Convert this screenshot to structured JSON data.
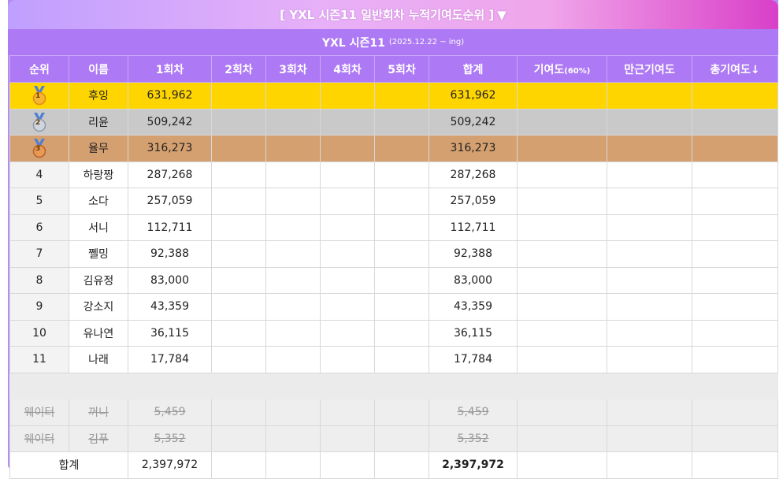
{
  "banner": {
    "title": "[ YXL 시즌11 일반회차 누적기여도순위 ]",
    "toggle_icon": "▼"
  },
  "subheader": {
    "title": "YXL 시즌11",
    "date_range": "(2025.12.22 ~ ing)"
  },
  "columns": {
    "rank": "순위",
    "name": "이름",
    "round1": "1회차",
    "round2": "2회차",
    "round3": "3회차",
    "round4": "4회차",
    "round5": "5회차",
    "total": "합계",
    "contrib": "기여도",
    "contrib_pct": "(60%)",
    "attendance": "만근기여도",
    "total_contrib": "총기여도↓"
  },
  "rows": [
    {
      "rank": "1",
      "name": "후잉",
      "r1": "631,962",
      "total": "631,962",
      "medal": "gold"
    },
    {
      "rank": "2",
      "name": "리윤",
      "r1": "509,242",
      "total": "509,242",
      "medal": "silver"
    },
    {
      "rank": "3",
      "name": "율무",
      "r1": "316,273",
      "total": "316,273",
      "medal": "bronze"
    },
    {
      "rank": "4",
      "name": "하랑짱",
      "r1": "287,268",
      "total": "287,268"
    },
    {
      "rank": "5",
      "name": "소다",
      "r1": "257,059",
      "total": "257,059"
    },
    {
      "rank": "6",
      "name": "서니",
      "r1": "112,711",
      "total": "112,711"
    },
    {
      "rank": "7",
      "name": "쪨밍",
      "r1": "92,388",
      "total": "92,388"
    },
    {
      "rank": "8",
      "name": "김유정",
      "r1": "83,000",
      "total": "83,000"
    },
    {
      "rank": "9",
      "name": "강소지",
      "r1": "43,359",
      "total": "43,359"
    },
    {
      "rank": "10",
      "name": "유나연",
      "r1": "36,115",
      "total": "36,115"
    },
    {
      "rank": "11",
      "name": "나래",
      "r1": "17,784",
      "total": "17,784"
    }
  ],
  "waiters": [
    {
      "rank": "웨이터",
      "name": "꺼니",
      "r1": "5,459",
      "total": "5,459"
    },
    {
      "rank": "웨이터",
      "name": "김푸",
      "r1": "5,352",
      "total": "5,352"
    }
  ],
  "summary": {
    "label": "합계",
    "r1": "2,397,972",
    "total": "2,397,972"
  },
  "colors": {
    "gold_row": "#ffd500",
    "silver_row": "#c9c9c9",
    "bronze_row": "#d4a070",
    "header": "#ad79f4"
  }
}
